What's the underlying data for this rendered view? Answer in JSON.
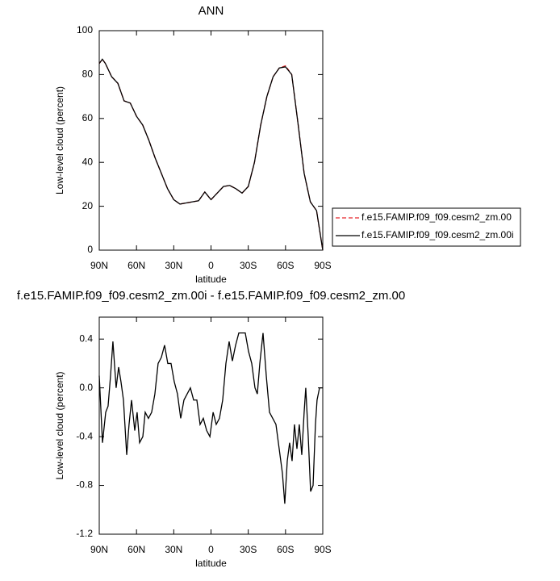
{
  "chart_data": [
    {
      "type": "line",
      "title": "ANN",
      "xlabel": "latitude",
      "ylabel": "Low-level cloud (percent)",
      "x": [
        90,
        87.5,
        85,
        80,
        75,
        70,
        65,
        60,
        55,
        50,
        45,
        40,
        35,
        30,
        25,
        20,
        15,
        10,
        5,
        0,
        -5,
        -10,
        -15,
        -20,
        -25,
        -30,
        -35,
        -40,
        -45,
        -50,
        -55,
        -60,
        -65,
        -70,
        -75,
        -80,
        -85,
        -90
      ],
      "series": [
        {
          "name": "f.e15.FAMIP.f09_f09.cesm2_zm.00",
          "color": "#e8262a",
          "line_style": "dashed",
          "values": [
            85,
            87,
            85,
            79,
            76,
            68,
            67,
            61,
            57,
            50,
            42,
            35,
            28,
            23,
            21,
            21.5,
            22,
            22.5,
            26.5,
            23,
            26,
            29,
            29.5,
            28,
            26,
            29,
            40,
            57,
            70,
            79,
            83,
            84,
            80,
            58,
            35,
            22,
            18,
            0
          ]
        },
        {
          "name": "f.e15.FAMIP.f09_f09.cesm2_zm.00i",
          "color": "#000000",
          "line_style": "solid",
          "values": [
            85,
            87,
            85,
            79,
            76,
            68,
            67,
            61,
            57,
            50,
            42,
            35,
            28,
            23,
            21,
            21.5,
            22,
            22.5,
            26.5,
            23,
            26,
            29,
            29.5,
            28,
            26,
            29,
            40,
            57,
            70,
            79,
            83,
            83.5,
            80,
            58,
            35,
            22,
            18,
            0
          ]
        }
      ],
      "xlim": [
        90,
        -90
      ],
      "xticks": [
        {
          "value": 90,
          "label": "90N"
        },
        {
          "value": 60,
          "label": "60N"
        },
        {
          "value": 30,
          "label": "30N"
        },
        0,
        {
          "value": -30,
          "label": "30S"
        },
        {
          "value": -60,
          "label": "60S"
        },
        {
          "value": -90,
          "label": "90S"
        }
      ],
      "ylim": [
        0,
        100
      ],
      "yticks": [
        0,
        20,
        40,
        60,
        80,
        100
      ],
      "grid": false,
      "legend": "right"
    },
    {
      "type": "line",
      "title": "f.e15.FAMIP.f09_f09.cesm2_zm.00i - f.e15.FAMIP.f09_f09.cesm2_zm.00",
      "xlabel": "latitude",
      "ylabel": "Low-level cloud (percent)",
      "x": [
        90,
        87.4,
        84.8,
        82.9,
        80.9,
        79,
        76.4,
        74.4,
        72.5,
        70.5,
        67.9,
        66,
        64,
        61.4,
        59.5,
        57.5,
        54.9,
        53,
        50.4,
        47.8,
        45.2,
        42.6,
        40,
        37.4,
        34.8,
        32.2,
        29.6,
        27,
        24.4,
        21.8,
        19.2,
        16.6,
        14,
        11.4,
        8.8,
        6.2,
        3.5,
        0.9,
        -1.7,
        -4.2,
        -6.8,
        -9.4,
        -12,
        -14.6,
        -17.2,
        -19.8,
        -22.4,
        -25,
        -27.6,
        -30.2,
        -32.8,
        -35.4,
        -37.3,
        -39.3,
        -41.9,
        -44.5,
        -47.1,
        -49.7,
        -52.3,
        -54.9,
        -57.5,
        -59.4,
        -61.4,
        -63.3,
        -65.3,
        -67.2,
        -69.2,
        -71.1,
        -73.1,
        -75,
        -76.3,
        -78.3,
        -80.2,
        -82.2,
        -84.1,
        -85.4,
        -87.4,
        -90
      ],
      "values": [
        0.1,
        -0.45,
        -0.2,
        -0.15,
        0.1,
        0.38,
        0.0,
        0.17,
        0.05,
        -0.1,
        -0.55,
        -0.3,
        -0.1,
        -0.35,
        -0.2,
        -0.45,
        -0.4,
        -0.2,
        -0.25,
        -0.2,
        -0.05,
        0.2,
        0.25,
        0.35,
        0.2,
        0.2,
        0.05,
        -0.05,
        -0.25,
        -0.1,
        -0.05,
        0.0,
        -0.1,
        -0.1,
        -0.3,
        -0.25,
        -0.35,
        -0.4,
        -0.2,
        -0.3,
        -0.25,
        -0.1,
        0.2,
        0.38,
        0.22,
        0.35,
        0.45,
        0.45,
        0.45,
        0.3,
        0.2,
        0.0,
        -0.05,
        0.2,
        0.45,
        0.1,
        -0.2,
        -0.25,
        -0.3,
        -0.5,
        -0.7,
        -0.95,
        -0.6,
        -0.45,
        -0.6,
        -0.3,
        -0.5,
        -0.3,
        -0.55,
        -0.2,
        0.0,
        -0.4,
        -0.85,
        -0.8,
        -0.3,
        -0.1,
        0,
        0
      ],
      "color": "#000000",
      "xlim": [
        90,
        -90
      ],
      "xticks": [
        {
          "value": 90,
          "label": "90N"
        },
        {
          "value": 60,
          "label": "60N"
        },
        {
          "value": 30,
          "label": "30N"
        },
        0,
        {
          "value": -30,
          "label": "30S"
        },
        {
          "value": -60,
          "label": "60S"
        },
        {
          "value": -90,
          "label": "90S"
        }
      ],
      "ylim": [
        -1.2,
        0.58
      ],
      "yticks": [
        0.4,
        {
          "value": 0,
          "label": "0.0"
        },
        -0.4,
        -0.8,
        -1.2
      ],
      "grid": false
    }
  ]
}
